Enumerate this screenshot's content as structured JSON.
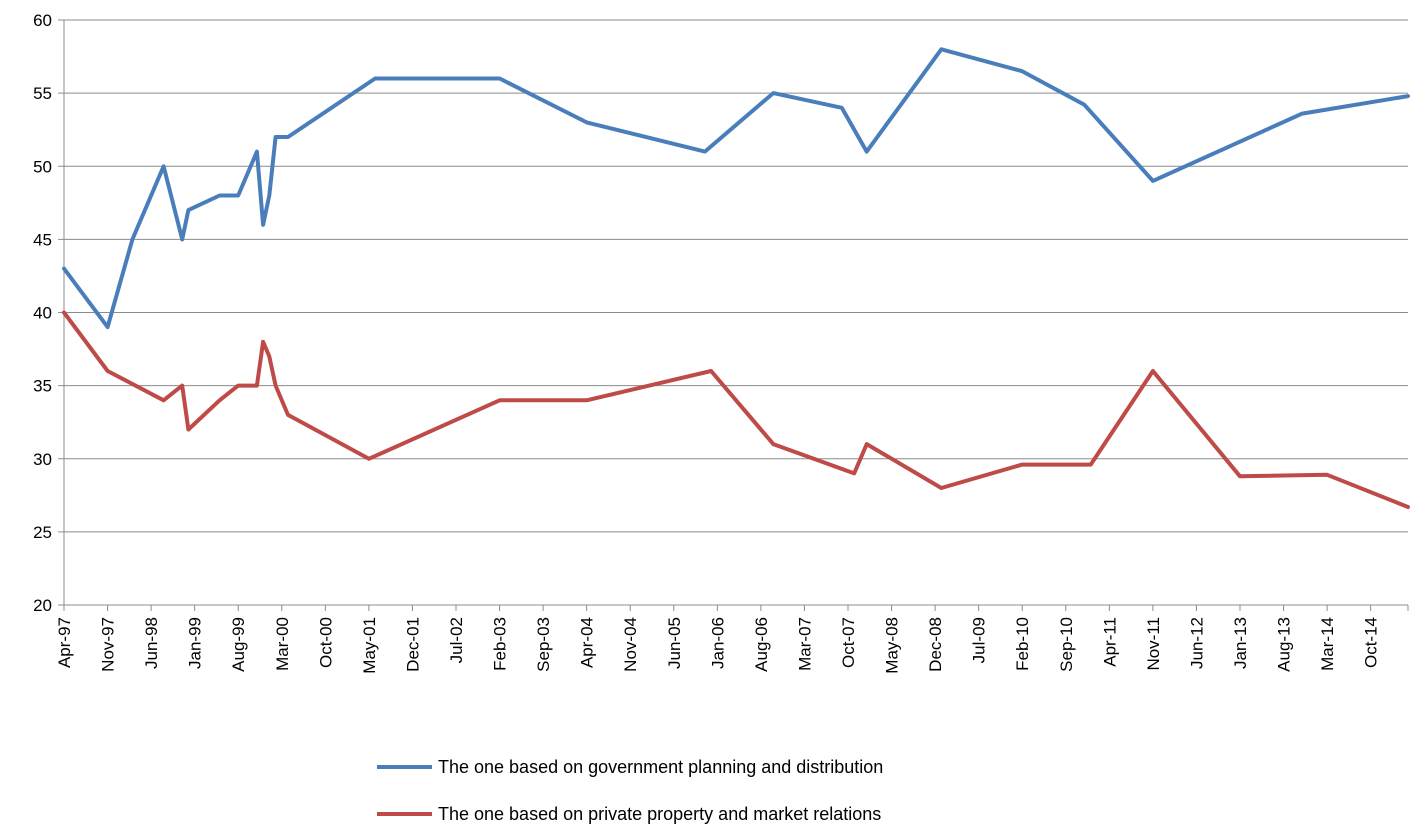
{
  "chart_data": {
    "type": "line",
    "title": "",
    "xlabel": "",
    "ylabel": "",
    "ylim": [
      20,
      60
    ],
    "yticks": [
      20,
      25,
      30,
      35,
      40,
      45,
      50,
      55,
      60
    ],
    "grid": "horizontal",
    "legend_position": "bottom",
    "x_axis": {
      "start": "1997-04",
      "end": "2015-04",
      "tick_labels": [
        {
          "label": "Apr-97",
          "date": "1997-04"
        },
        {
          "label": "Nov-97",
          "date": "1997-11"
        },
        {
          "label": "Jun-98",
          "date": "1998-06"
        },
        {
          "label": "Jan-99",
          "date": "1999-01"
        },
        {
          "label": "Aug-99",
          "date": "1999-08"
        },
        {
          "label": "Mar-00",
          "date": "2000-03"
        },
        {
          "label": "Oct-00",
          "date": "2000-10"
        },
        {
          "label": "May-01",
          "date": "2001-05"
        },
        {
          "label": "Dec-01",
          "date": "2001-12"
        },
        {
          "label": "Jul-02",
          "date": "2002-07"
        },
        {
          "label": "Feb-03",
          "date": "2003-02"
        },
        {
          "label": "Sep-03",
          "date": "2003-09"
        },
        {
          "label": "Apr-04",
          "date": "2004-04"
        },
        {
          "label": "Nov-04",
          "date": "2004-11"
        },
        {
          "label": "Jun-05",
          "date": "2005-06"
        },
        {
          "label": "Jan-06",
          "date": "2006-01"
        },
        {
          "label": "Aug-06",
          "date": "2006-08"
        },
        {
          "label": "Mar-07",
          "date": "2007-03"
        },
        {
          "label": "Oct-07",
          "date": "2007-10"
        },
        {
          "label": "May-08",
          "date": "2008-05"
        },
        {
          "label": "Dec-08",
          "date": "2008-12"
        },
        {
          "label": "Jul-09",
          "date": "2009-07"
        },
        {
          "label": "Feb-10",
          "date": "2010-02"
        },
        {
          "label": "Sep-10",
          "date": "2010-09"
        },
        {
          "label": "Apr-11",
          "date": "2011-04"
        },
        {
          "label": "Nov-11",
          "date": "2011-11"
        },
        {
          "label": "Jun-12",
          "date": "2012-06"
        },
        {
          "label": "Jan-13",
          "date": "2013-01"
        },
        {
          "label": "Aug-13",
          "date": "2013-08"
        },
        {
          "label": "Mar-14",
          "date": "2014-03"
        },
        {
          "label": "Oct-14",
          "date": "2014-10"
        }
      ]
    },
    "series": [
      {
        "name": "The one based on government planning and distribution",
        "color": "#4a7ebb",
        "points": [
          {
            "date": "1997-04",
            "value": 43
          },
          {
            "date": "1997-11",
            "value": 39
          },
          {
            "date": "1998-03",
            "value": 45
          },
          {
            "date": "1998-08",
            "value": 50
          },
          {
            "date": "1998-11",
            "value": 45
          },
          {
            "date": "1998-12",
            "value": 47
          },
          {
            "date": "1999-05",
            "value": 48
          },
          {
            "date": "1999-08",
            "value": 48
          },
          {
            "date": "1999-11",
            "value": 51
          },
          {
            "date": "1999-12",
            "value": 46
          },
          {
            "date": "2000-01",
            "value": 48
          },
          {
            "date": "2000-02",
            "value": 52
          },
          {
            "date": "2000-04",
            "value": 52
          },
          {
            "date": "2001-06",
            "value": 56
          },
          {
            "date": "2003-02",
            "value": 56
          },
          {
            "date": "2004-04",
            "value": 53
          },
          {
            "date": "2005-11",
            "value": 51
          },
          {
            "date": "2006-10",
            "value": 55
          },
          {
            "date": "2007-09",
            "value": 54
          },
          {
            "date": "2008-01",
            "value": 51
          },
          {
            "date": "2009-01",
            "value": 58
          },
          {
            "date": "2010-02",
            "value": 56.5
          },
          {
            "date": "2010-12",
            "value": 54.2
          },
          {
            "date": "2011-11",
            "value": 49
          },
          {
            "date": "2013-11",
            "value": 53.6
          },
          {
            "date": "2015-04",
            "value": 54.8
          }
        ]
      },
      {
        "name": "The one based on private property and market relations",
        "color": "#be4b48",
        "points": [
          {
            "date": "1997-04",
            "value": 40
          },
          {
            "date": "1997-11",
            "value": 36
          },
          {
            "date": "1998-08",
            "value": 34
          },
          {
            "date": "1998-11",
            "value": 35
          },
          {
            "date": "1998-12",
            "value": 32
          },
          {
            "date": "1999-05",
            "value": 34
          },
          {
            "date": "1999-08",
            "value": 35
          },
          {
            "date": "1999-11",
            "value": 35
          },
          {
            "date": "1999-12",
            "value": 38
          },
          {
            "date": "2000-01",
            "value": 37
          },
          {
            "date": "2000-02",
            "value": 35
          },
          {
            "date": "2000-04",
            "value": 33
          },
          {
            "date": "2001-05",
            "value": 30
          },
          {
            "date": "2003-02",
            "value": 34
          },
          {
            "date": "2004-04",
            "value": 34
          },
          {
            "date": "2005-12",
            "value": 36
          },
          {
            "date": "2006-10",
            "value": 31
          },
          {
            "date": "2007-11",
            "value": 29
          },
          {
            "date": "2008-01",
            "value": 31
          },
          {
            "date": "2009-01",
            "value": 28
          },
          {
            "date": "2010-02",
            "value": 29.6
          },
          {
            "date": "2011-01",
            "value": 29.6
          },
          {
            "date": "2011-11",
            "value": 36
          },
          {
            "date": "2013-01",
            "value": 28.8
          },
          {
            "date": "2014-03",
            "value": 28.9
          },
          {
            "date": "2015-04",
            "value": 26.7
          }
        ]
      }
    ]
  }
}
